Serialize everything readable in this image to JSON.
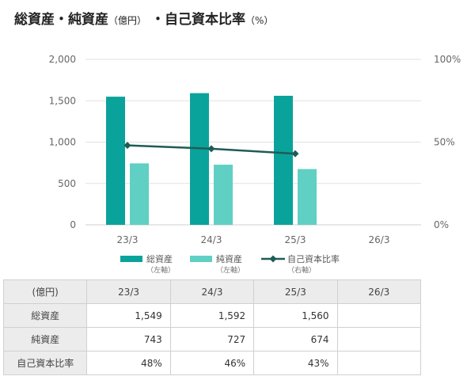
{
  "title": {
    "part1": "総資産・純資産",
    "unit1": "（億円）",
    "part2": "・自己資本比率",
    "unit2": "（%）"
  },
  "chart_data": {
    "type": "bar",
    "categories": [
      "23/3",
      "24/3",
      "25/3",
      "26/3"
    ],
    "series": [
      {
        "name": "総資産",
        "sub": "（左軸）",
        "axis": "left",
        "type": "bar",
        "color": "#0aa39b",
        "values": [
          1549,
          1592,
          1560,
          null
        ]
      },
      {
        "name": "純資産",
        "sub": "（左軸）",
        "axis": "left",
        "type": "bar",
        "color": "#5fd0c3",
        "values": [
          743,
          727,
          674,
          null
        ]
      },
      {
        "name": "自己資本比率",
        "sub": "（右軸）",
        "axis": "right",
        "type": "line",
        "color": "#1f5c57",
        "values": [
          48,
          46,
          43,
          null
        ]
      }
    ],
    "ylim_left": [
      0,
      2000
    ],
    "yticks_left": [
      "0",
      "500",
      "1,000",
      "1,500",
      "2,000"
    ],
    "ylim_right": [
      0,
      100
    ],
    "yticks_right": [
      "0%",
      "50%",
      "100%"
    ],
    "grid": true,
    "legend": "bottom"
  },
  "table": {
    "unit_label": "(億円)",
    "headers": [
      "23/3",
      "24/3",
      "25/3",
      "26/3"
    ],
    "rows": [
      {
        "label": "総資産",
        "values": [
          "1,549",
          "1,592",
          "1,560",
          ""
        ]
      },
      {
        "label": "純資産",
        "values": [
          "743",
          "727",
          "674",
          ""
        ]
      },
      {
        "label": "自己資本比率",
        "values": [
          "48%",
          "46%",
          "43%",
          ""
        ]
      }
    ]
  }
}
